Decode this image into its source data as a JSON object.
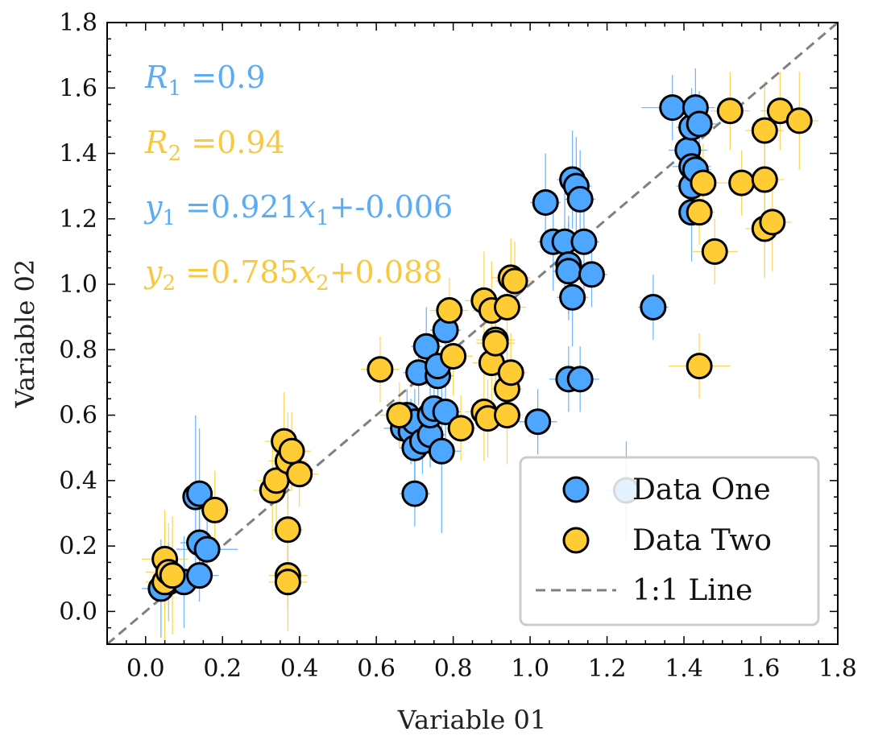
{
  "chart_data": {
    "type": "scatter",
    "xlabel": "Variable 01",
    "ylabel": "Variable 02",
    "xlim": [
      -0.1,
      1.8
    ],
    "ylim": [
      -0.1,
      1.8
    ],
    "xticks": [
      "0.0",
      "0.2",
      "0.4",
      "0.6",
      "0.8",
      "1.0",
      "1.2",
      "1.4",
      "1.6",
      "1.8"
    ],
    "yticks": [
      "0.0",
      "0.2",
      "0.4",
      "0.6",
      "0.8",
      "1.0",
      "1.2",
      "1.4",
      "1.6",
      "1.8"
    ],
    "annotations": {
      "r1_label": "R",
      "r1_sub": "1",
      "r1_value": " =0.9",
      "r2_label": "R",
      "r2_sub": "2",
      "r2_value": " =0.94",
      "eq1_y": "y",
      "eq1_y_sub": "1",
      "eq1_mid": " =0.921",
      "eq1_x": "x",
      "eq1_x_sub": "1",
      "eq1_tail": "+-0.006",
      "eq2_y": "y",
      "eq2_y_sub": "2",
      "eq2_mid": " =0.785",
      "eq2_x": "x",
      "eq2_x_sub": "2",
      "eq2_tail": "+0.088"
    },
    "legend": {
      "position": "lower-right",
      "entries": [
        "Data One",
        "Data Two",
        "1:1 Line"
      ]
    },
    "colors": {
      "series1": "#4da6ff",
      "series2": "#ffcc33",
      "annot1": "#5aacf5",
      "annot2": "#f8c940",
      "line": "#808080"
    },
    "series": [
      {
        "name": "Data One",
        "points": [
          [
            0.04,
            0.07,
            0.05,
            0.15
          ],
          [
            0.06,
            0.09,
            0.04,
            0.12
          ],
          [
            0.1,
            0.09,
            0.05,
            0.14
          ],
          [
            0.13,
            0.35,
            0.03,
            0.25
          ],
          [
            0.14,
            0.36,
            0.03,
            0.2
          ],
          [
            0.14,
            0.21,
            0.05,
            0.12
          ],
          [
            0.14,
            0.11,
            0.05,
            0.08
          ],
          [
            0.16,
            0.19,
            0.08,
            0.1
          ],
          [
            0.67,
            0.56,
            0.05,
            0.08
          ],
          [
            0.68,
            0.6,
            0.05,
            0.08
          ],
          [
            0.69,
            0.55,
            0.05,
            0.1
          ],
          [
            0.7,
            0.36,
            0.04,
            0.1
          ],
          [
            0.7,
            0.58,
            0.04,
            0.1
          ],
          [
            0.7,
            0.5,
            0.04,
            0.12
          ],
          [
            0.71,
            0.73,
            0.04,
            0.1
          ],
          [
            0.72,
            0.52,
            0.04,
            0.1
          ],
          [
            0.73,
            0.81,
            0.04,
            0.12
          ],
          [
            0.74,
            0.54,
            0.04,
            0.1
          ],
          [
            0.74,
            0.6,
            0.04,
            0.1
          ],
          [
            0.75,
            0.62,
            0.05,
            0.1
          ],
          [
            0.76,
            0.72,
            0.04,
            0.1
          ],
          [
            0.76,
            0.75,
            0.04,
            0.1
          ],
          [
            0.77,
            0.49,
            0.05,
            0.25
          ],
          [
            0.78,
            0.61,
            0.04,
            0.1
          ],
          [
            0.78,
            0.86,
            0.04,
            0.1
          ],
          [
            1.02,
            0.58,
            0.05,
            0.1
          ],
          [
            1.04,
            1.25,
            0.04,
            0.15
          ],
          [
            1.06,
            1.13,
            0.04,
            0.15
          ],
          [
            1.09,
            1.13,
            0.04,
            0.15
          ],
          [
            1.1,
            0.71,
            0.05,
            0.1
          ],
          [
            1.1,
            1.06,
            0.04,
            0.15
          ],
          [
            1.1,
            1.04,
            0.04,
            0.15
          ],
          [
            1.11,
            1.32,
            0.04,
            0.15
          ],
          [
            1.11,
            0.96,
            0.04,
            0.15
          ],
          [
            1.12,
            1.3,
            0.04,
            0.15
          ],
          [
            1.13,
            0.71,
            0.05,
            0.1
          ],
          [
            1.13,
            1.26,
            0.04,
            0.15
          ],
          [
            1.14,
            1.13,
            0.04,
            0.15
          ],
          [
            1.16,
            1.03,
            0.04,
            0.1
          ],
          [
            1.25,
            0.37,
            0.05,
            0.15
          ],
          [
            1.32,
            0.93,
            0.04,
            0.1
          ],
          [
            1.37,
            1.54,
            0.08,
            0.1
          ],
          [
            1.41,
            1.41,
            0.05,
            0.15
          ],
          [
            1.42,
            1.36,
            0.05,
            0.12
          ],
          [
            1.42,
            1.22,
            0.03,
            0.15
          ],
          [
            1.42,
            1.3,
            0.04,
            0.12
          ],
          [
            1.42,
            1.48,
            0.04,
            0.12
          ],
          [
            1.43,
            1.35,
            0.04,
            0.12
          ],
          [
            1.43,
            1.54,
            0.05,
            0.12
          ],
          [
            1.44,
            1.49,
            0.05,
            0.1
          ]
        ]
      },
      {
        "name": "Data Two",
        "points": [
          [
            0.05,
            0.09,
            0.05,
            0.18
          ],
          [
            0.05,
            0.16,
            0.06,
            0.15
          ],
          [
            0.06,
            0.12,
            0.06,
            0.15
          ],
          [
            0.07,
            0.11,
            0.05,
            0.18
          ],
          [
            0.18,
            0.31,
            0.04,
            0.12
          ],
          [
            0.33,
            0.37,
            0.05,
            0.15
          ],
          [
            0.34,
            0.4,
            0.05,
            0.15
          ],
          [
            0.36,
            0.52,
            0.05,
            0.15
          ],
          [
            0.37,
            0.25,
            0.04,
            0.15
          ],
          [
            0.37,
            0.11,
            0.05,
            0.1
          ],
          [
            0.37,
            0.09,
            0.05,
            0.15
          ],
          [
            0.37,
            0.46,
            0.05,
            0.15
          ],
          [
            0.38,
            0.49,
            0.05,
            0.12
          ],
          [
            0.4,
            0.42,
            0.05,
            0.1
          ],
          [
            0.61,
            0.74,
            0.05,
            0.1
          ],
          [
            0.66,
            0.6,
            0.05,
            0.1
          ],
          [
            0.79,
            0.92,
            0.05,
            0.1
          ],
          [
            0.8,
            0.78,
            0.05,
            0.12
          ],
          [
            0.82,
            0.56,
            0.04,
            0.1
          ],
          [
            0.88,
            0.95,
            0.05,
            0.15
          ],
          [
            0.88,
            0.61,
            0.05,
            0.15
          ],
          [
            0.89,
            0.59,
            0.05,
            0.12
          ],
          [
            0.9,
            0.92,
            0.05,
            0.15
          ],
          [
            0.9,
            0.76,
            0.05,
            0.15
          ],
          [
            0.91,
            0.83,
            0.05,
            0.12
          ],
          [
            0.91,
            0.82,
            0.05,
            0.12
          ],
          [
            0.94,
            0.93,
            0.05,
            0.12
          ],
          [
            0.94,
            0.68,
            0.04,
            0.12
          ],
          [
            0.94,
            0.6,
            0.04,
            0.15
          ],
          [
            0.95,
            0.73,
            0.04,
            0.12
          ],
          [
            0.95,
            1.02,
            0.05,
            0.12
          ],
          [
            0.96,
            1.01,
            0.05,
            0.12
          ],
          [
            1.44,
            0.75,
            0.08,
            0.1
          ],
          [
            1.44,
            1.22,
            0.04,
            0.1
          ],
          [
            1.45,
            1.31,
            0.05,
            0.12
          ],
          [
            1.48,
            1.1,
            0.06,
            0.1
          ],
          [
            1.52,
            1.53,
            0.05,
            0.12
          ],
          [
            1.55,
            1.31,
            0.05,
            0.1
          ],
          [
            1.61,
            1.32,
            0.05,
            0.15
          ],
          [
            1.61,
            1.17,
            0.05,
            0.15
          ],
          [
            1.61,
            1.47,
            0.05,
            0.15
          ],
          [
            1.63,
            1.19,
            0.05,
            0.15
          ],
          [
            1.65,
            1.53,
            0.05,
            0.12
          ],
          [
            1.7,
            1.5,
            0.05,
            0.15
          ]
        ]
      }
    ]
  }
}
